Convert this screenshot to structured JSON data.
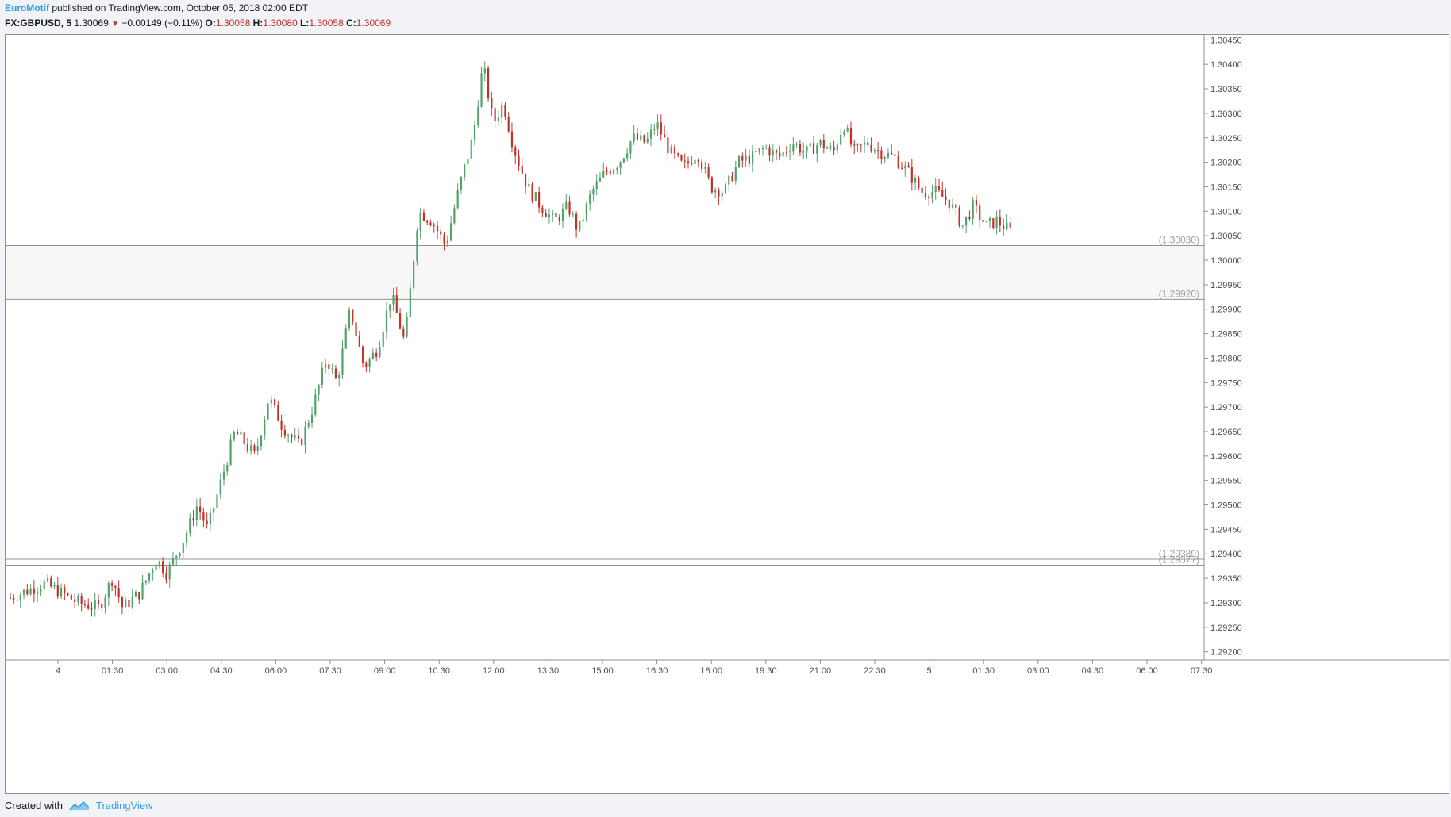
{
  "header": {
    "author": "EuroMotif",
    "publish_text": "published on TradingView.com, October 05, 2018 02:00 EDT"
  },
  "ohlc": {
    "symbol": "FX:GBPUSD, 5",
    "last": "1.30069",
    "change": "−0.00149 (−0.11%)",
    "o_label": "O:",
    "o_value": "1.30058",
    "h_label": "H:",
    "h_value": "1.30080",
    "l_label": "L:",
    "l_value": "1.30058",
    "c_label": "C:",
    "c_value": "1.30069"
  },
  "footer": {
    "created_with": "Created with",
    "brand": "TradingView"
  },
  "chart_data": {
    "type": "candlestick",
    "ylim": [
      1.2918,
      1.3047
    ],
    "y_ticks": [
      "1.30450",
      "1.30400",
      "1.30350",
      "1.30300",
      "1.30250",
      "1.30200",
      "1.30150",
      "1.30100",
      "1.30050",
      "1.30000",
      "1.29950",
      "1.29900",
      "1.29850",
      "1.29800",
      "1.29750",
      "1.29700",
      "1.29650",
      "1.29600",
      "1.29550",
      "1.29500",
      "1.29450",
      "1.29400",
      "1.29350",
      "1.29300",
      "1.29250",
      "1.29200"
    ],
    "x_ticks": [
      "4",
      "01:30",
      "03:00",
      "04:30",
      "06:00",
      "07:30",
      "09:00",
      "10:30",
      "12:00",
      "13:30",
      "15:00",
      "16:30",
      "18:00",
      "19:30",
      "21:00",
      "22:30",
      "5",
      "01:30",
      "03:00",
      "04:30",
      "06:00",
      "07:30"
    ],
    "levels": [
      {
        "value": 1.3003,
        "label": "(1.30030)"
      },
      {
        "value": 1.2992,
        "label": "(1.29920)"
      },
      {
        "value": 1.29389,
        "label": "(1.29389)"
      },
      {
        "value": 1.29377,
        "label": "(1.29377)"
      }
    ],
    "zone": {
      "from": 1.2992,
      "to": 1.3003
    },
    "colors": {
      "up": "#53a16b",
      "down": "#c2322c",
      "grid_line": "#8f9399",
      "zone_fill": "#f7f7f8"
    },
    "price_path": [
      [
        0,
        1.2931
      ],
      [
        10,
        1.2934
      ],
      [
        15,
        1.2932
      ],
      [
        20,
        1.293
      ],
      [
        26,
        1.2929
      ],
      [
        30,
        1.2935
      ],
      [
        33,
        1.2929
      ],
      [
        38,
        1.2932
      ],
      [
        43,
        1.2939
      ],
      [
        46,
        1.2936
      ],
      [
        51,
        1.2943
      ],
      [
        55,
        1.295
      ],
      [
        58,
        1.2945
      ],
      [
        62,
        1.2955
      ],
      [
        66,
        1.2965
      ],
      [
        72,
        1.296
      ],
      [
        76,
        1.2972
      ],
      [
        80,
        1.2966
      ],
      [
        85,
        1.2962
      ],
      [
        89,
        1.297
      ],
      [
        93,
        1.298
      ],
      [
        96,
        1.2975
      ],
      [
        100,
        1.299
      ],
      [
        104,
        1.2978
      ],
      [
        108,
        1.2982
      ],
      [
        112,
        1.2993
      ],
      [
        116,
        1.2983
      ],
      [
        120,
        1.301
      ],
      [
        124,
        1.3008
      ],
      [
        128,
        1.3003
      ],
      [
        132,
        1.3015
      ],
      [
        136,
        1.3025
      ],
      [
        139,
        1.304
      ],
      [
        142,
        1.3028
      ],
      [
        145,
        1.3032
      ],
      [
        148,
        1.3023
      ],
      [
        152,
        1.3015
      ],
      [
        156,
        1.3011
      ],
      [
        160,
        1.3008
      ],
      [
        164,
        1.3011
      ],
      [
        167,
        1.3006
      ],
      [
        171,
        1.3014
      ],
      [
        175,
        1.3018
      ],
      [
        179,
        1.302
      ],
      [
        183,
        1.3025
      ],
      [
        187,
        1.3024
      ],
      [
        190,
        1.3028
      ],
      [
        194,
        1.3022
      ],
      [
        198,
        1.3019
      ],
      [
        202,
        1.3022
      ],
      [
        206,
        1.3015
      ],
      [
        210,
        1.3014
      ],
      [
        214,
        1.302
      ],
      [
        218,
        1.3021
      ],
      [
        222,
        1.3023
      ],
      [
        226,
        1.3021
      ],
      [
        230,
        1.3024
      ],
      [
        234,
        1.3022
      ],
      [
        238,
        1.3024
      ],
      [
        242,
        1.3022
      ],
      [
        245,
        1.3028
      ],
      [
        248,
        1.3022
      ],
      [
        252,
        1.3024
      ],
      [
        256,
        1.3022
      ],
      [
        260,
        1.3021
      ],
      [
        264,
        1.3018
      ],
      [
        268,
        1.3014
      ],
      [
        272,
        1.3014
      ],
      [
        276,
        1.3012
      ],
      [
        280,
        1.3007
      ],
      [
        283,
        1.3011
      ],
      [
        287,
        1.3007
      ],
      [
        290,
        1.3008
      ],
      [
        294,
        1.3006
      ]
    ],
    "bar_count": 296,
    "bars_per_day": 288
  }
}
